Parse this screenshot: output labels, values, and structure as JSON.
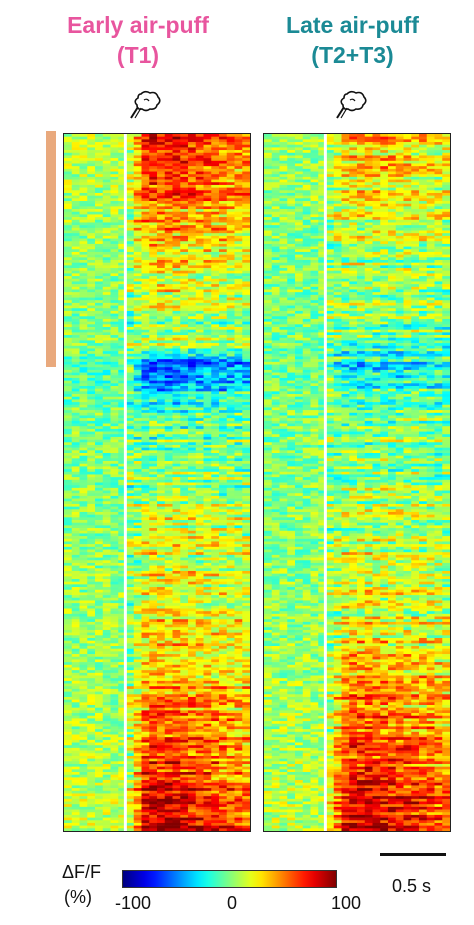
{
  "titles": {
    "left_line1": "Early air-puff",
    "left_line2": "(T1)",
    "right_line1": "Late air-puff",
    "right_line2": "(T2+T3)",
    "left_color": "#e8559e",
    "right_color": "#1b8a95"
  },
  "colorbar": {
    "label_line1": "ΔF/F",
    "label_line2": "(%)",
    "min_label": "-100",
    "mid_label": "0",
    "max_label": "100",
    "colormap": "jet",
    "range": [
      -100,
      100
    ]
  },
  "scale_bar": {
    "label": "0.5 s"
  },
  "icons": [
    "air-puff-icon",
    "air-puff-icon"
  ],
  "cluster_bar_color": "#e9a97d",
  "chart_data": [
    {
      "type": "heatmap",
      "title": "Early air-puff (T1)",
      "rows": 260,
      "colormap": "jet",
      "clim": [
        -100,
        100
      ],
      "xlabel": "",
      "ylabel": "",
      "stimulus_onset_fraction": 0.33,
      "profile_note": "row-sorted response: strong positive at top, negative band near row 0.33, strong positive at bottom",
      "row_profile_points": [
        {
          "row_fraction": 0.0,
          "post_value": 90
        },
        {
          "row_fraction": 0.1,
          "post_value": 50
        },
        {
          "row_fraction": 0.2,
          "post_value": 25
        },
        {
          "row_fraction": 0.3,
          "post_value": 5
        },
        {
          "row_fraction": 0.335,
          "post_value": -70
        },
        {
          "row_fraction": 0.4,
          "post_value": -10
        },
        {
          "row_fraction": 0.55,
          "post_value": 15
        },
        {
          "row_fraction": 0.7,
          "post_value": 30
        },
        {
          "row_fraction": 0.85,
          "post_value": 55
        },
        {
          "row_fraction": 1.0,
          "post_value": 95
        }
      ]
    },
    {
      "type": "heatmap",
      "title": "Late air-puff (T2+T3)",
      "rows": 260,
      "colormap": "jet",
      "clim": [
        -100,
        100
      ],
      "xlabel": "",
      "ylabel": "",
      "stimulus_onset_fraction": 0.33,
      "profile_note": "same row order; weaker top response, strong positive at bottom",
      "row_profile_points": [
        {
          "row_fraction": 0.0,
          "post_value": 45
        },
        {
          "row_fraction": 0.1,
          "post_value": 20
        },
        {
          "row_fraction": 0.2,
          "post_value": 5
        },
        {
          "row_fraction": 0.3,
          "post_value": -5
        },
        {
          "row_fraction": 0.335,
          "post_value": -35
        },
        {
          "row_fraction": 0.4,
          "post_value": 0
        },
        {
          "row_fraction": 0.55,
          "post_value": 10
        },
        {
          "row_fraction": 0.7,
          "post_value": 25
        },
        {
          "row_fraction": 0.85,
          "post_value": 55
        },
        {
          "row_fraction": 1.0,
          "post_value": 85
        }
      ]
    }
  ]
}
